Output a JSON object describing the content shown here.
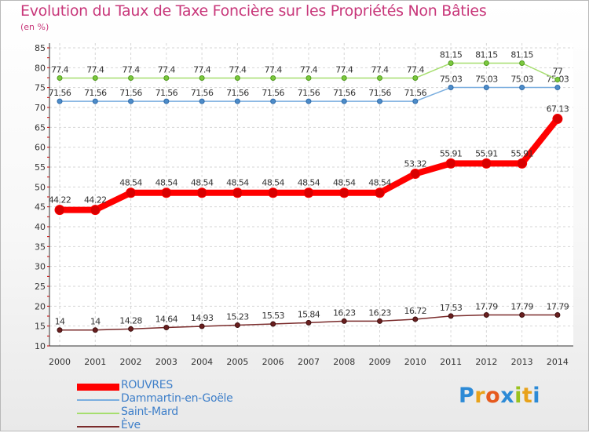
{
  "chart_data": {
    "type": "line",
    "title": "Evolution du Taux de Taxe Foncière sur les Propriétés Non Bâties",
    "subtitle": "(en %)",
    "xlabel": "",
    "ylabel": "",
    "x": [
      "2000",
      "2001",
      "2002",
      "2003",
      "2004",
      "2005",
      "2006",
      "2007",
      "2008",
      "2009",
      "2010",
      "2011",
      "2012",
      "2013",
      "2014"
    ],
    "ylim": [
      10,
      85
    ],
    "yticks": [
      10,
      15,
      20,
      25,
      30,
      35,
      40,
      45,
      50,
      55,
      60,
      65,
      70,
      75,
      80,
      85
    ],
    "grid": true,
    "legend_position": "bottom-left",
    "series": [
      {
        "name": "ROUVRES",
        "color": "#ff0000",
        "labels": [
          "44.22",
          "44.22",
          "48.54",
          "48.54",
          "48.54",
          "48.54",
          "48.54",
          "48.54",
          "48.54",
          "48.54",
          "53.32",
          "55.91",
          "55.91",
          "55.91",
          "67.13"
        ],
        "values": [
          44.22,
          44.22,
          48.54,
          48.54,
          48.54,
          48.54,
          48.54,
          48.54,
          48.54,
          48.54,
          53.32,
          55.91,
          55.91,
          55.91,
          67.13
        ]
      },
      {
        "name": "Dammartin-en-Goële",
        "color": "#4d8cc9",
        "labels": [
          "71.56",
          "71.56",
          "71.56",
          "71.56",
          "71.56",
          "71.56",
          "71.56",
          "71.56",
          "71.56",
          "71.56",
          "71.56",
          "75.03",
          "75.03",
          "75.03",
          "75.03"
        ],
        "values": [
          71.56,
          71.56,
          71.56,
          71.56,
          71.56,
          71.56,
          71.56,
          71.56,
          71.56,
          71.56,
          71.56,
          75.03,
          75.03,
          75.03,
          75.03
        ]
      },
      {
        "name": "Saint-Mard",
        "color": "#8fd14f",
        "labels": [
          "77.4",
          "77.4",
          "77.4",
          "77.4",
          "77.4",
          "77.4",
          "77.4",
          "77.4",
          "77.4",
          "77.4",
          "77.4",
          "81.15",
          "81.15",
          "81.15",
          "77"
        ],
        "values": [
          77.4,
          77.4,
          77.4,
          77.4,
          77.4,
          77.4,
          77.4,
          77.4,
          77.4,
          77.4,
          77.4,
          81.15,
          81.15,
          81.15,
          77
        ]
      },
      {
        "name": "Ève",
        "color": "#7a2b2b",
        "labels": [
          "14",
          "14",
          "14.28",
          "14.64",
          "14.93",
          "15.23",
          "15.53",
          "15.84",
          "16.23",
          "16.23",
          "16.72",
          "17.53",
          "17.79",
          "17.79",
          "17.79"
        ],
        "values": [
          14,
          14,
          14.28,
          14.64,
          14.93,
          15.23,
          15.53,
          15.84,
          16.23,
          16.23,
          16.72,
          17.53,
          17.79,
          17.79,
          17.79
        ]
      }
    ]
  },
  "logo": {
    "text": "Proxiti",
    "letter_colors": [
      "#2c8ad6",
      "#e8a21a",
      "#e65a1e",
      "#2c8ad6",
      "#9ac21e",
      "#e8a21a",
      "#2c8ad6"
    ]
  }
}
